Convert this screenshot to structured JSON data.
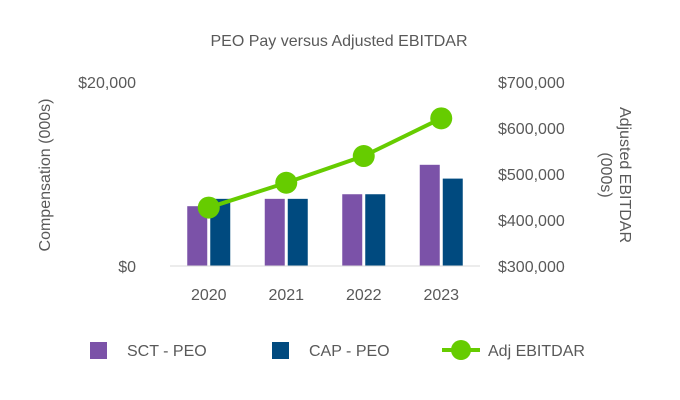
{
  "chart_data": {
    "type": "bar+line",
    "title": "PEO Pay versus Adjusted EBITDAR",
    "categories": [
      "2020",
      "2021",
      "2022",
      "2023"
    ],
    "y_left": {
      "label": "Compensation (000s)",
      "range": [
        0,
        20000
      ],
      "ticks": [
        0,
        20000
      ],
      "tick_labels": [
        "$0",
        "$20,000"
      ]
    },
    "y_right": {
      "label_lines": [
        "Adjusted EBITDAR",
        "(000s)"
      ],
      "range": [
        300000,
        700000
      ],
      "ticks": [
        300000,
        400000,
        500000,
        600000,
        700000
      ],
      "tick_labels": [
        "$300,000",
        "$400,000",
        "$500,000",
        "$600,000",
        "$700,000"
      ]
    },
    "series": [
      {
        "name": "SCT - PEO",
        "type": "bar",
        "axis": "left",
        "color": "#7B52A8",
        "values": [
          6500,
          7300,
          7800,
          11000
        ]
      },
      {
        "name": "CAP - PEO",
        "type": "bar",
        "axis": "left",
        "color": "#004A7F",
        "values": [
          7300,
          7300,
          7800,
          9500
        ]
      },
      {
        "name": "Adj EBITDAR",
        "type": "line",
        "axis": "right",
        "color": "#66CC00",
        "values": [
          427000,
          481000,
          539000,
          621000
        ]
      }
    ],
    "grid": false,
    "legend_position": "bottom"
  }
}
